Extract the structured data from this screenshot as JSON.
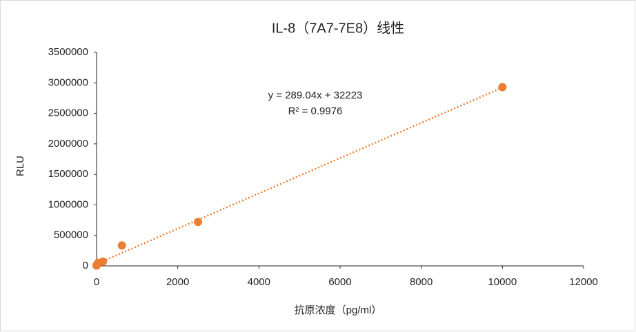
{
  "chart_data": {
    "type": "scatter",
    "title": "IL-8（7A7-7E8）线性",
    "x_label": "抗原浓度（pg/ml）",
    "y_label": "RLU",
    "series": [
      {
        "name": "RLU",
        "color": "#ed7d31",
        "x": [
          0,
          9.77,
          39.06,
          156.25,
          625,
          2500,
          10000
        ],
        "values": [
          5000,
          20000,
          50000,
          70000,
          335000,
          720000,
          2930000
        ]
      }
    ],
    "trendline": {
      "slope": 289.04,
      "intercept": 32223,
      "equation": "y = 289.04x + 32223",
      "r2": "R² = 0.9976",
      "color": "#ed7d31"
    },
    "xlim": [
      0,
      12000
    ],
    "xticks": [
      0,
      2000,
      4000,
      6000,
      8000,
      10000,
      12000
    ],
    "ylim": [
      0,
      3500000
    ],
    "yticks": [
      0,
      500000,
      1000000,
      1500000,
      2000000,
      2500000,
      3000000,
      3500000
    ],
    "grid": false
  }
}
